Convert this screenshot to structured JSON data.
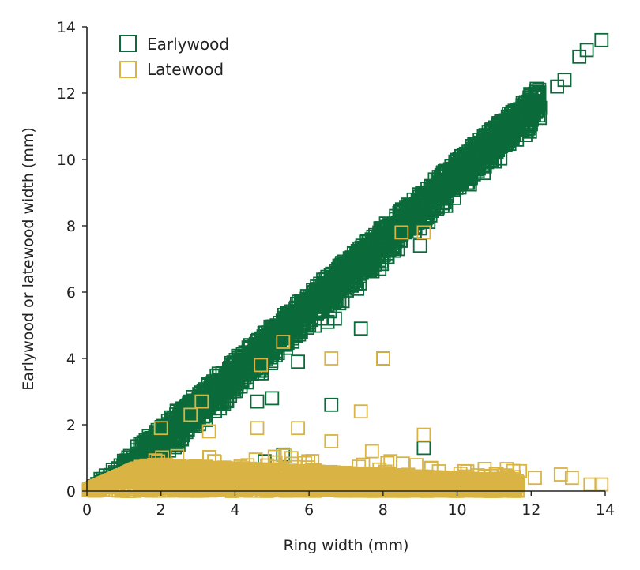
{
  "chart_data": {
    "type": "scatter",
    "xlabel": "Ring width (mm)",
    "ylabel": "Earlywood or latewood width (mm)",
    "xlim": [
      0,
      14
    ],
    "ylim": [
      0,
      14
    ],
    "xticks": [
      0,
      2,
      4,
      6,
      8,
      10,
      12,
      14
    ],
    "yticks": [
      0,
      2,
      4,
      6,
      8,
      10,
      12,
      14
    ],
    "grid": false,
    "legend_position": "top-left",
    "marker": "open-square",
    "series": [
      {
        "name": "Earlywood",
        "color": "#0b6b3a",
        "points": [
          [
            12.7,
            12.2
          ],
          [
            12.9,
            12.4
          ],
          [
            13.3,
            13.1
          ],
          [
            13.5,
            13.3
          ],
          [
            13.9,
            13.6
          ],
          [
            12.0,
            11.8
          ],
          [
            11.9,
            11.6
          ],
          [
            12.1,
            11.9
          ],
          [
            11.6,
            11.3
          ],
          [
            11.2,
            10.8
          ],
          [
            9.0,
            7.4
          ],
          [
            8.0,
            4.0
          ],
          [
            7.4,
            4.9
          ],
          [
            6.7,
            5.2
          ],
          [
            6.5,
            5.1
          ],
          [
            5.7,
            3.9
          ],
          [
            6.6,
            2.6
          ],
          [
            5.0,
            2.8
          ],
          [
            4.6,
            2.7
          ],
          [
            7.3,
            6.1
          ],
          [
            7.9,
            6.7
          ],
          [
            8.4,
            7.3
          ],
          [
            9.7,
            8.6
          ],
          [
            10.3,
            9.3
          ],
          [
            5.3,
            1.1
          ],
          [
            4.8,
            0.9
          ],
          [
            9.1,
            1.3
          ]
        ]
      },
      {
        "name": "Latewood",
        "color": "#d9b444",
        "points": [
          [
            6.6,
            4.0
          ],
          [
            7.4,
            2.4
          ],
          [
            8.0,
            4.0
          ],
          [
            9.1,
            1.7
          ],
          [
            5.7,
            1.9
          ],
          [
            4.6,
            1.9
          ],
          [
            3.3,
            1.8
          ],
          [
            2.0,
            1.9
          ],
          [
            3.1,
            2.7
          ],
          [
            2.8,
            2.3
          ],
          [
            4.7,
            3.8
          ],
          [
            5.3,
            4.5
          ],
          [
            9.1,
            7.8
          ],
          [
            8.5,
            7.8
          ],
          [
            6.6,
            1.5
          ],
          [
            7.7,
            1.2
          ],
          [
            8.2,
            0.9
          ],
          [
            12.8,
            0.5
          ],
          [
            13.1,
            0.4
          ],
          [
            13.6,
            0.2
          ],
          [
            13.9,
            0.2
          ],
          [
            12.1,
            0.4
          ],
          [
            11.7,
            0.6
          ],
          [
            10.2,
            0.6
          ],
          [
            9.3,
            0.7
          ]
        ]
      }
    ]
  }
}
